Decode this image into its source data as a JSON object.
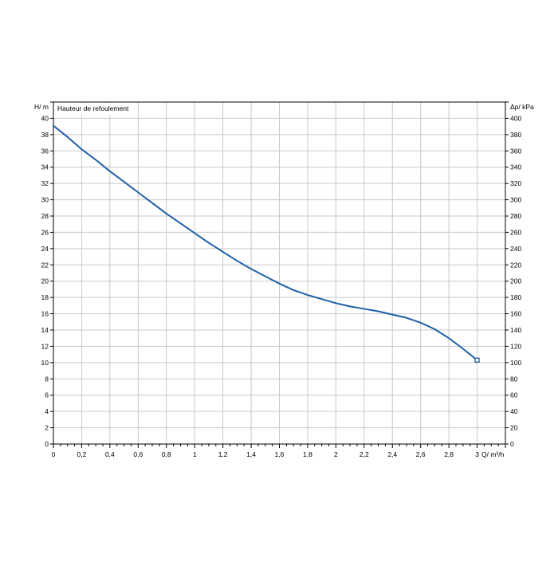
{
  "chart_data": {
    "type": "line",
    "title": "Hauteur de refoulement",
    "xlabel": "Q/ m³/h",
    "ylabel_left": "H/ m",
    "ylabel_right": "Δp/ kPa",
    "xlim": [
      0,
      3.2
    ],
    "ylim_left": [
      0,
      42
    ],
    "ylim_right": [
      0,
      420
    ],
    "x_ticks": [
      "0",
      "0,2",
      "0,4",
      "0,6",
      "0,8",
      "1",
      "1,2",
      "1,4",
      "1,6",
      "1,8",
      "2",
      "2,2",
      "2,4",
      "2,6",
      "2,8",
      "3"
    ],
    "y_ticks_left": [
      "0",
      "2",
      "4",
      "6",
      "8",
      "10",
      "12",
      "14",
      "16",
      "18",
      "20",
      "22",
      "24",
      "26",
      "28",
      "30",
      "32",
      "34",
      "36",
      "38",
      "40"
    ],
    "y_ticks_right": [
      "0",
      "20",
      "40",
      "60",
      "80",
      "100",
      "120",
      "140",
      "160",
      "180",
      "200",
      "220",
      "240",
      "260",
      "280",
      "300",
      "320",
      "340",
      "360",
      "380",
      "400"
    ],
    "grid": true,
    "series": [
      {
        "x": [
          0,
          0.1,
          0.2,
          0.3,
          0.4,
          0.5,
          0.6,
          0.7,
          0.8,
          0.9,
          1.0,
          1.1,
          1.2,
          1.3,
          1.4,
          1.5,
          1.6,
          1.7,
          1.8,
          1.9,
          2.0,
          2.1,
          2.2,
          2.3,
          2.4,
          2.5,
          2.6,
          2.7,
          2.8,
          2.9,
          3.0
        ],
        "values": [
          39.1,
          37.7,
          36.2,
          34.9,
          33.5,
          32.2,
          30.9,
          29.6,
          28.3,
          27.1,
          25.9,
          24.7,
          23.6,
          22.5,
          21.5,
          20.6,
          19.7,
          18.9,
          18.3,
          17.8,
          17.3,
          16.9,
          16.6,
          16.3,
          15.9,
          15.5,
          14.9,
          14.1,
          13.0,
          11.7,
          10.3
        ],
        "color": "#1f5fa6"
      }
    ],
    "end_marker": {
      "x": 3.0,
      "y": 10.3
    }
  }
}
